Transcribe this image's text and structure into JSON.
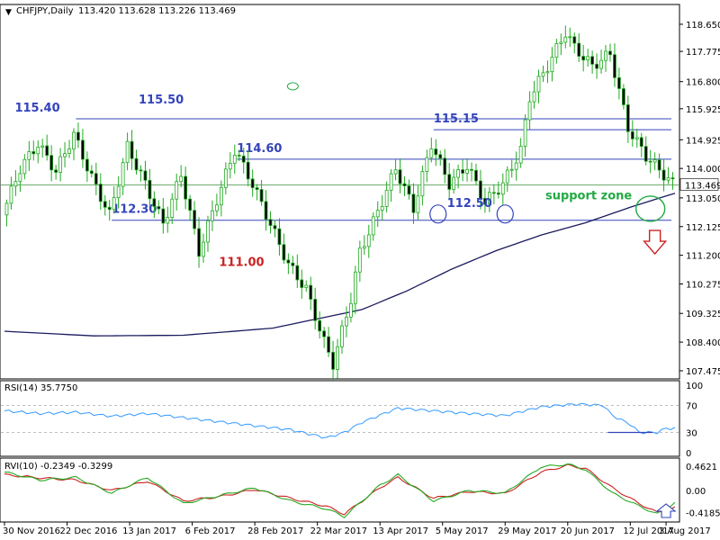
{
  "chart_data": {
    "type": "candlestick",
    "title": "CHFJPY,Daily",
    "ohlc_header": "113.420 113.628 113.226 113.469",
    "ylim": [
      107.3,
      119.2
    ],
    "y_ticks": [
      "118.650",
      "117.775",
      "116.800",
      "115.925",
      "114.925",
      "114.000",
      "113.050",
      "112.125",
      "111.200",
      "110.275",
      "109.325",
      "108.400",
      "107.475"
    ],
    "current_price": "113.469",
    "x_labels": [
      "30 Nov 2016",
      "22 Dec 2016",
      "13 Jan 2017",
      "6 Feb 2017",
      "28 Feb 2017",
      "22 Mar 2017",
      "13 Apr 2017",
      "5 May 2017",
      "29 May 2017",
      "20 Jun 2017",
      "12 Jul 2017",
      "3 Aug 2017"
    ],
    "price_path": [
      [
        0,
        112.5
      ],
      [
        4,
        114.0
      ],
      [
        8,
        114.8
      ],
      [
        12,
        113.9
      ],
      [
        16,
        115.1
      ],
      [
        20,
        113.7
      ],
      [
        24,
        112.5
      ],
      [
        28,
        114.7
      ],
      [
        32,
        113.5
      ],
      [
        36,
        112.2
      ],
      [
        40,
        113.8
      ],
      [
        44,
        111.3
      ],
      [
        48,
        113.0
      ],
      [
        52,
        114.6
      ],
      [
        56,
        113.5
      ],
      [
        60,
        112.2
      ],
      [
        64,
        110.9
      ],
      [
        68,
        110.1
      ],
      [
        72,
        108.4
      ],
      [
        74,
        107.7
      ],
      [
        78,
        109.8
      ],
      [
        80,
        111.3
      ],
      [
        84,
        112.6
      ],
      [
        88,
        114.0
      ],
      [
        92,
        112.7
      ],
      [
        96,
        114.8
      ],
      [
        100,
        113.5
      ],
      [
        104,
        114.1
      ],
      [
        108,
        112.9
      ],
      [
        112,
        113.5
      ],
      [
        116,
        114.6
      ],
      [
        118,
        116.3
      ],
      [
        122,
        117.3
      ],
      [
        126,
        118.4
      ],
      [
        128,
        117.9
      ],
      [
        132,
        117.3
      ],
      [
        136,
        117.7
      ],
      [
        140,
        115.3
      ],
      [
        144,
        114.4
      ],
      [
        148,
        113.8
      ],
      [
        150,
        113.5
      ]
    ],
    "ma_path": [
      [
        0,
        108.75
      ],
      [
        20,
        108.6
      ],
      [
        40,
        108.62
      ],
      [
        60,
        108.85
      ],
      [
        70,
        109.15
      ],
      [
        80,
        109.45
      ],
      [
        90,
        110.05
      ],
      [
        100,
        110.75
      ],
      [
        110,
        111.35
      ],
      [
        120,
        111.85
      ],
      [
        130,
        112.25
      ],
      [
        140,
        112.75
      ],
      [
        150,
        113.2
      ]
    ],
    "levels": [
      {
        "value": 115.6,
        "label": "115.40",
        "from": 16,
        "label_color": "#3344bb"
      },
      {
        "value": 115.25,
        "label": "115.15",
        "from": 96,
        "label_color": "#3344bb"
      },
      {
        "value": 114.3,
        "label": "114.60",
        "from": 52,
        "label_color": "#3344bb"
      },
      {
        "value": 112.33,
        "label": "112.30",
        "from": 24,
        "label_color": "#3344bb"
      }
    ],
    "annotations": [
      {
        "text": "115.50",
        "x": 30,
        "y": 116.1,
        "color": "#3344bb"
      },
      {
        "text": "112.50",
        "x": 99,
        "y": 112.75,
        "color": "#3344bb"
      },
      {
        "text": "111.00",
        "x": 48,
        "y": 110.85,
        "color": "#cc2222"
      },
      {
        "text": "support zone",
        "x": 121,
        "y": 113.0,
        "color": "#22aa44"
      }
    ],
    "rsi": {
      "label": "RSI(14) 35.7750",
      "ticks": [
        "100",
        "70",
        "30",
        "0"
      ],
      "levels": [
        70,
        30
      ],
      "path": [
        [
          0,
          62
        ],
        [
          8,
          58
        ],
        [
          16,
          60
        ],
        [
          24,
          54
        ],
        [
          32,
          58
        ],
        [
          40,
          52
        ],
        [
          48,
          46
        ],
        [
          56,
          40
        ],
        [
          64,
          34
        ],
        [
          72,
          22
        ],
        [
          76,
          30
        ],
        [
          80,
          45
        ],
        [
          88,
          66
        ],
        [
          96,
          62
        ],
        [
          104,
          58
        ],
        [
          112,
          55
        ],
        [
          120,
          68
        ],
        [
          128,
          72
        ],
        [
          134,
          70
        ],
        [
          136,
          55
        ],
        [
          140,
          42
        ],
        [
          142,
          30
        ],
        [
          146,
          30
        ],
        [
          148,
          36
        ],
        [
          150,
          35.8
        ]
      ],
      "support_line": {
        "value": 30,
        "from": 135,
        "to": 145
      }
    },
    "rvi": {
      "label": "RVI(10) -0.2349 -0.3299",
      "ticks": [
        "0.4621",
        "0.00",
        "-0.4185"
      ],
      "ylim": [
        -0.55,
        0.55
      ],
      "green": [
        [
          0,
          0.35
        ],
        [
          8,
          0.2
        ],
        [
          16,
          0.25
        ],
        [
          24,
          -0.05
        ],
        [
          32,
          0.25
        ],
        [
          40,
          -0.25
        ],
        [
          48,
          -0.1
        ],
        [
          56,
          0.05
        ],
        [
          64,
          -0.2
        ],
        [
          72,
          -0.35
        ],
        [
          76,
          -0.5
        ],
        [
          84,
          0.1
        ],
        [
          88,
          0.3
        ],
        [
          96,
          -0.2
        ],
        [
          104,
          0.0
        ],
        [
          112,
          -0.05
        ],
        [
          120,
          0.45
        ],
        [
          126,
          0.5
        ],
        [
          130,
          0.4
        ],
        [
          136,
          -0.05
        ],
        [
          142,
          -0.3
        ],
        [
          146,
          -0.45
        ],
        [
          150,
          -0.23
        ]
      ],
      "red": [
        [
          0,
          0.3
        ],
        [
          8,
          0.24
        ],
        [
          16,
          0.2
        ],
        [
          24,
          0.0
        ],
        [
          32,
          0.18
        ],
        [
          40,
          -0.2
        ],
        [
          48,
          -0.12
        ],
        [
          56,
          0.02
        ],
        [
          64,
          -0.15
        ],
        [
          72,
          -0.3
        ],
        [
          76,
          -0.45
        ],
        [
          84,
          0.05
        ],
        [
          88,
          0.25
        ],
        [
          96,
          -0.15
        ],
        [
          104,
          -0.02
        ],
        [
          112,
          -0.06
        ],
        [
          120,
          0.35
        ],
        [
          126,
          0.48
        ],
        [
          130,
          0.42
        ],
        [
          136,
          0.05
        ],
        [
          142,
          -0.25
        ],
        [
          146,
          -0.42
        ],
        [
          150,
          -0.33
        ]
      ]
    },
    "colors": {
      "candle": "#22aa22",
      "ma": "#1a1a5e",
      "level": "#3344bb",
      "rsi": "#3399ff",
      "rvi_green": "#22aa22",
      "rvi_red": "#cc2222",
      "arrow": "#cc2222",
      "marker": "#22aa44",
      "circle": "#3344bb"
    }
  }
}
